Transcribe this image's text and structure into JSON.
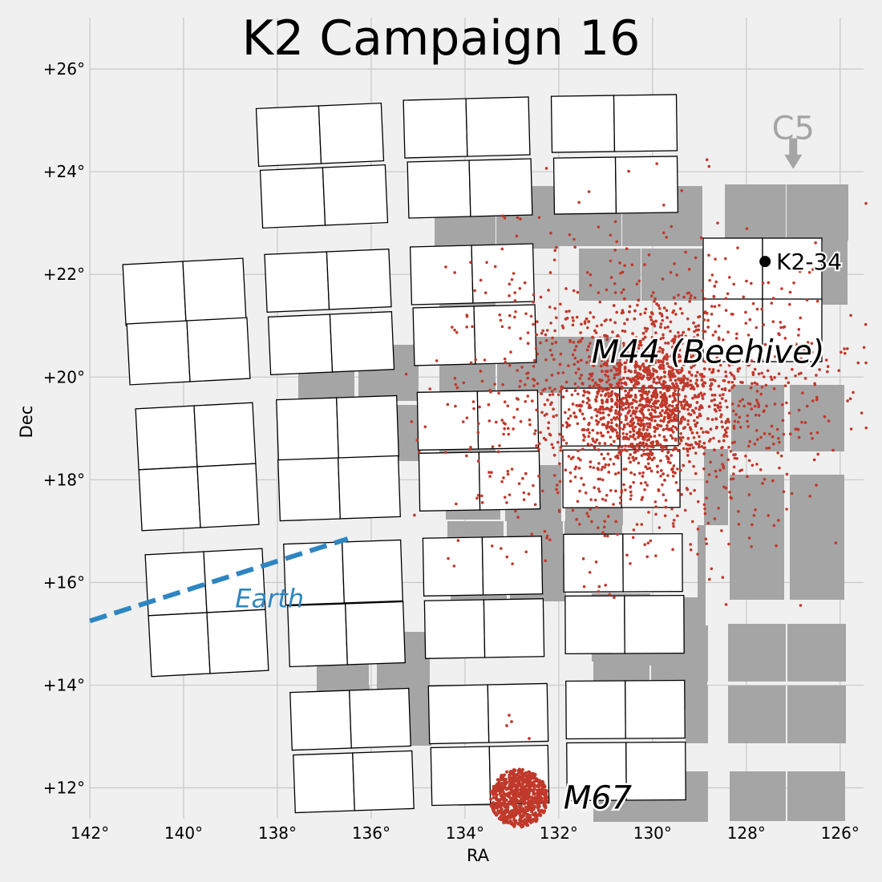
{
  "chart_data": {
    "type": "scatter",
    "title": "K2 Campaign 16",
    "xlabel": "RA",
    "ylabel": "Dec",
    "xlim": [
      142,
      125.5
    ],
    "ylim": [
      11.4,
      27
    ],
    "grid": true,
    "x_ticks": [
      {
        "value": 142,
        "label": "142°"
      },
      {
        "value": 140,
        "label": "140°"
      },
      {
        "value": 138,
        "label": "138°"
      },
      {
        "value": 136,
        "label": "136°"
      },
      {
        "value": 134,
        "label": "134°"
      },
      {
        "value": 132,
        "label": "132°"
      },
      {
        "value": 130,
        "label": "130°"
      },
      {
        "value": 128,
        "label": "128°"
      },
      {
        "value": 126,
        "label": "126°"
      }
    ],
    "y_ticks": [
      {
        "value": 12,
        "label": "+12°"
      },
      {
        "value": 14,
        "label": "+14°"
      },
      {
        "value": 16,
        "label": "+16°"
      },
      {
        "value": 18,
        "label": "+18°"
      },
      {
        "value": 20,
        "label": "+20°"
      },
      {
        "value": 22,
        "label": "+22°"
      },
      {
        "value": 24,
        "label": "+24°"
      },
      {
        "value": 26,
        "label": "+26°"
      }
    ],
    "annotations": {
      "m44": {
        "text": "M44 (Beehive)",
        "ra": 131.3,
        "dec": 20.5
      },
      "m67": {
        "text": "M67",
        "ra": 131.9,
        "dec": 11.8
      },
      "k2_34": {
        "text": "K2-34",
        "ra": 127.6,
        "dec": 22.25
      },
      "earth": {
        "text": "Earth",
        "ra": 138.9,
        "dec": 15.7,
        "line": [
          [
            142,
            15.25
          ],
          [
            136.5,
            16.85
          ]
        ],
        "color": "#2e86c1"
      },
      "c5": {
        "text": "C5",
        "ra": 127.0,
        "dec": 24.85,
        "arrow_from": [
          127.0,
          24.65
        ],
        "arrow_to": [
          127.0,
          24.05
        ],
        "color": "#a5a5a5"
      }
    },
    "clusters": [
      {
        "name": "M44 (Beehive)",
        "ra": 130.1,
        "dec": 19.6,
        "color": "#c0392b"
      },
      {
        "name": "M67",
        "ra": 132.85,
        "dec": 11.8,
        "color": "#c0392b"
      }
    ],
    "previous_campaign": {
      "name": "C5",
      "color": "#a5a5a5"
    },
    "ccd_fill": "#ffffff"
  }
}
